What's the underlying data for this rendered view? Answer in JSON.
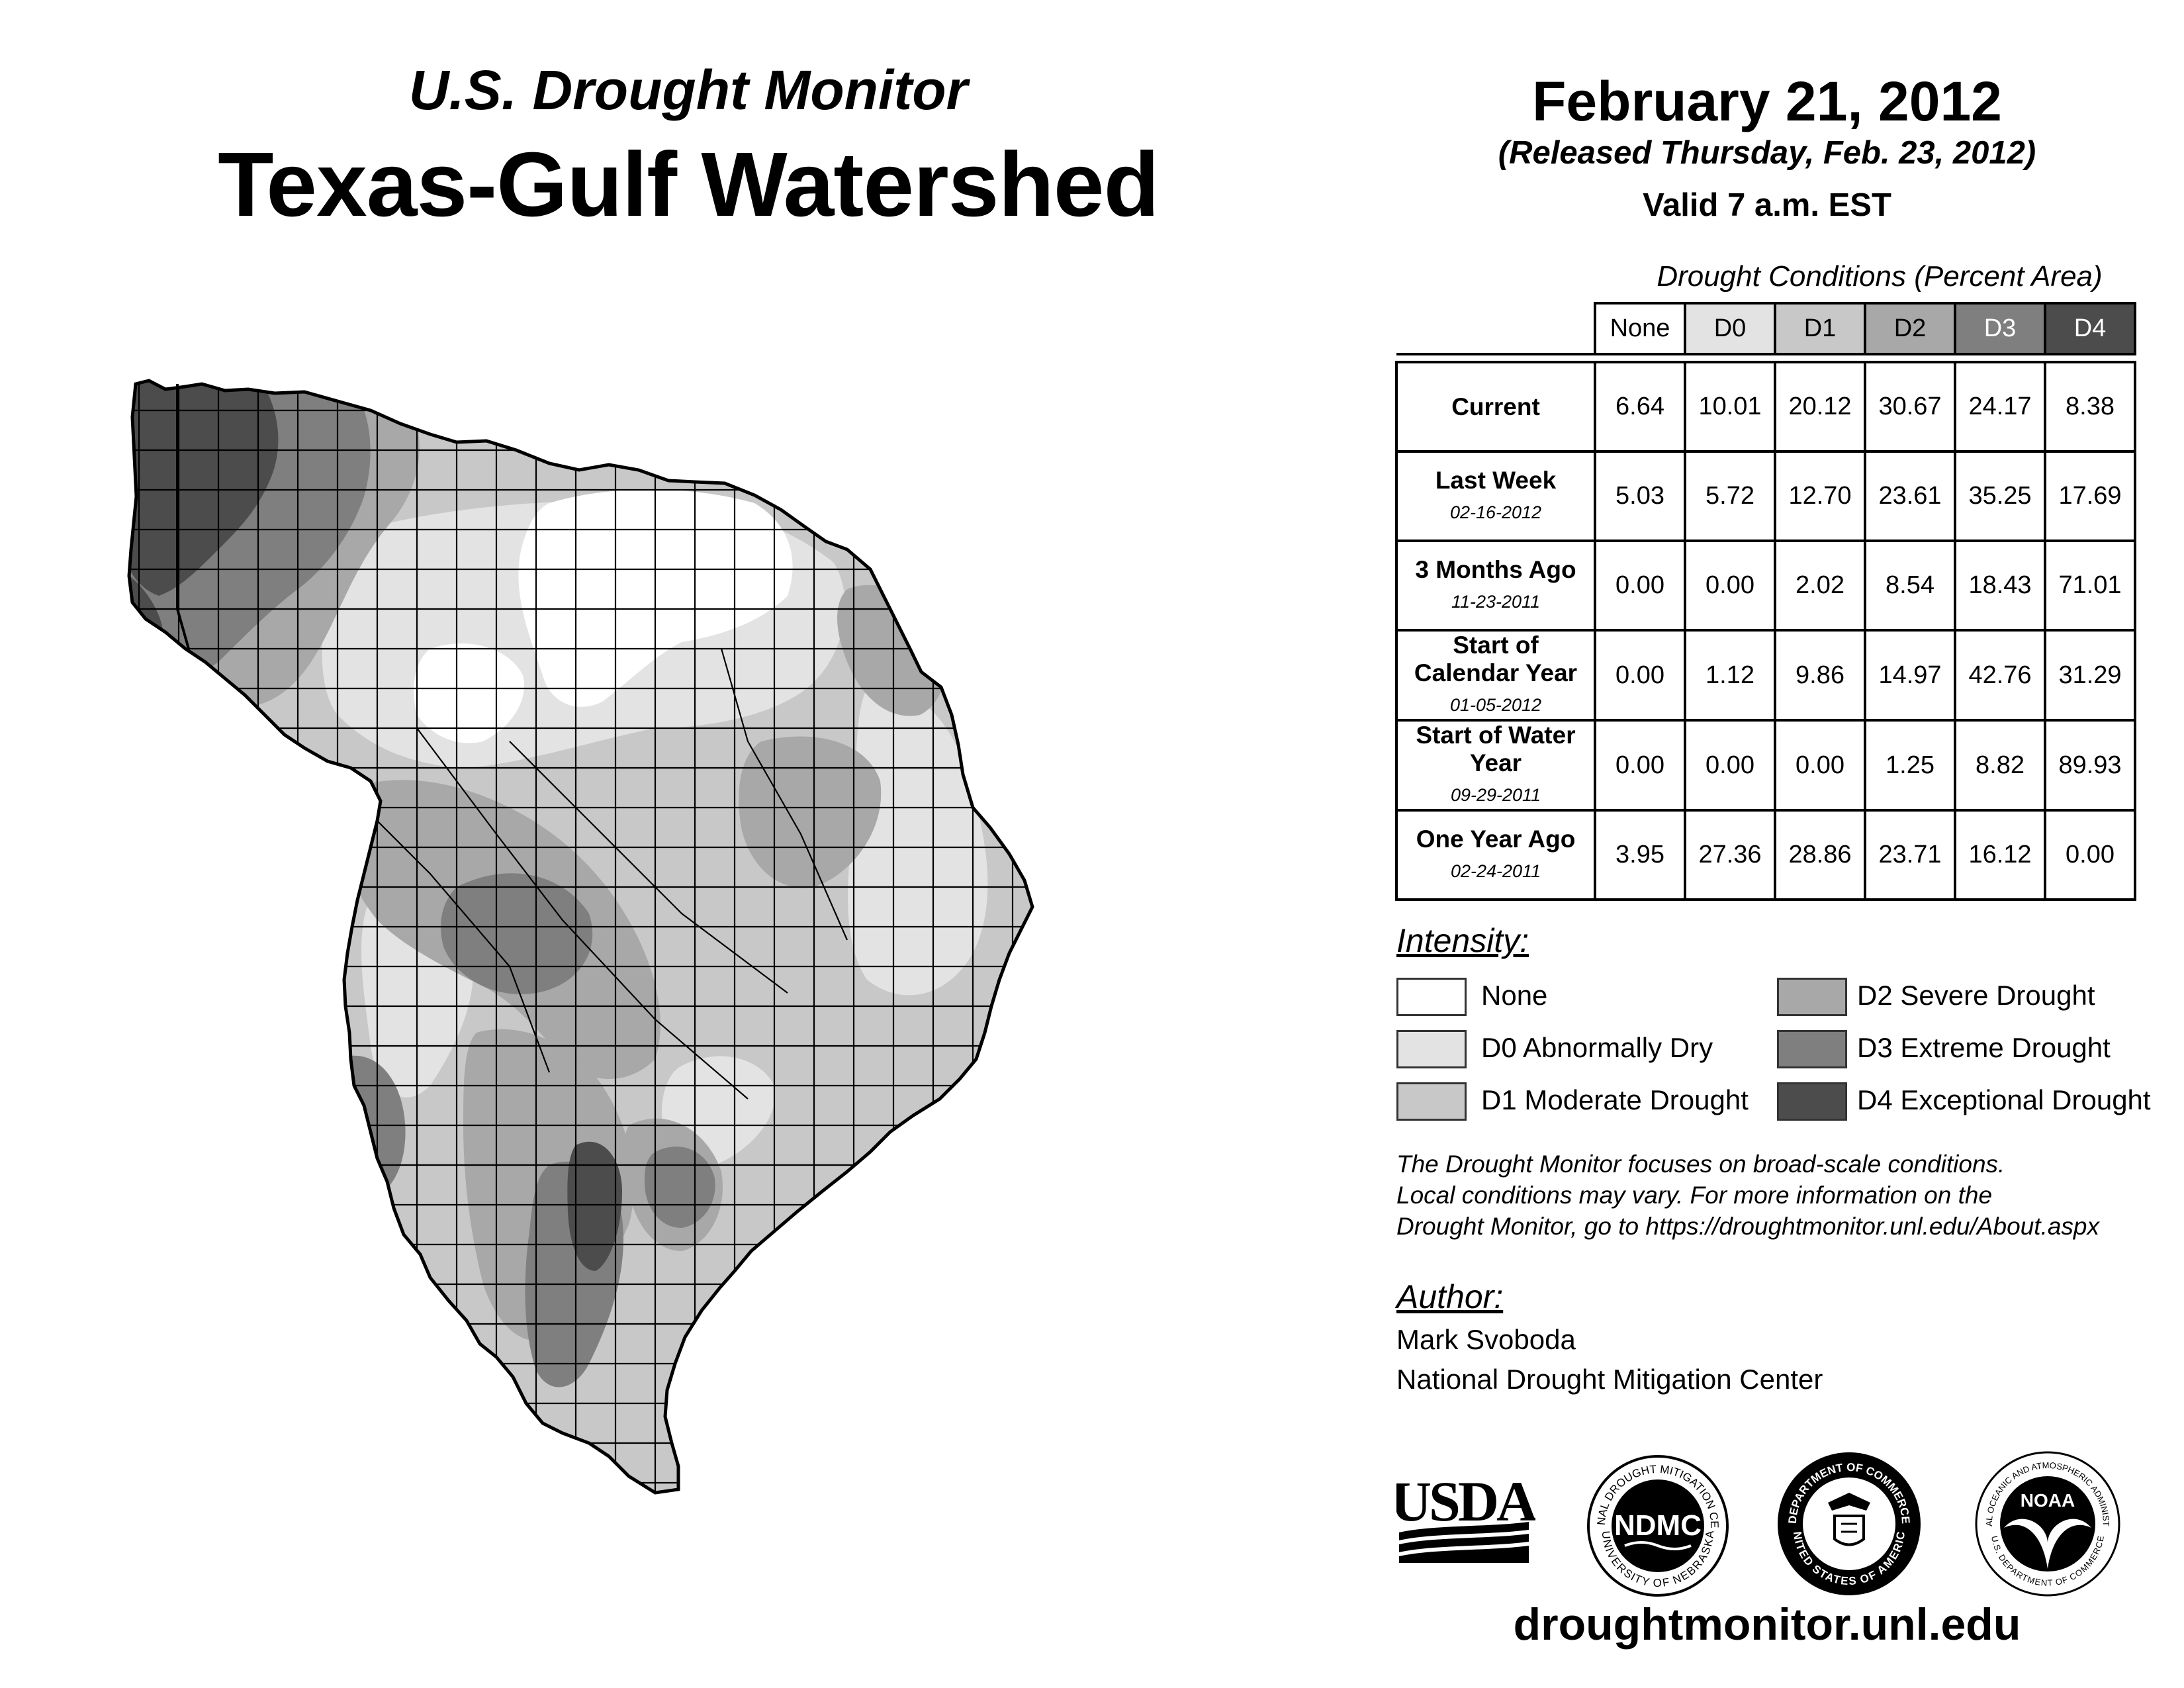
{
  "header": {
    "subtitle": "U.S. Drought Monitor",
    "title": "Texas-Gulf Watershed",
    "date": "February 21, 2012",
    "released": "(Released Thursday, Feb. 23, 2012)",
    "valid": "Valid 7 a.m. EST"
  },
  "table": {
    "caption": "Drought Conditions (Percent Area)",
    "columns": [
      "None",
      "D0",
      "D1",
      "D2",
      "D3",
      "D4"
    ],
    "rows": [
      {
        "label": "Current",
        "date": "",
        "values": [
          "6.64",
          "10.01",
          "20.12",
          "30.67",
          "24.17",
          "8.38"
        ]
      },
      {
        "label": "Last Week",
        "date": "02-16-2012",
        "values": [
          "5.03",
          "5.72",
          "12.70",
          "23.61",
          "35.25",
          "17.69"
        ]
      },
      {
        "label": "3 Months Ago",
        "date": "11-23-2011",
        "values": [
          "0.00",
          "0.00",
          "2.02",
          "8.54",
          "18.43",
          "71.01"
        ]
      },
      {
        "label": "Start of Calendar Year",
        "date": "01-05-2012",
        "values": [
          "0.00",
          "1.12",
          "9.86",
          "14.97",
          "42.76",
          "31.29"
        ]
      },
      {
        "label": "Start of Water Year",
        "date": "09-29-2011",
        "values": [
          "0.00",
          "0.00",
          "0.00",
          "1.25",
          "8.82",
          "89.93"
        ]
      },
      {
        "label": "One Year Ago",
        "date": "02-24-2011",
        "values": [
          "3.95",
          "27.36",
          "28.86",
          "23.71",
          "16.12",
          "0.00"
        ]
      }
    ]
  },
  "legend": {
    "title": "Intensity:",
    "items": [
      {
        "label": "None",
        "color": "#ffffff"
      },
      {
        "label": "D0 Abnormally Dry",
        "color": "#e3e3e3"
      },
      {
        "label": "D1 Moderate Drought",
        "color": "#c8c8c8"
      },
      {
        "label": "D2 Severe Drought",
        "color": "#a8a8a8"
      },
      {
        "label": "D3 Extreme Drought",
        "color": "#7f7f7f"
      },
      {
        "label": "D4 Exceptional Drought",
        "color": "#4c4c4c"
      }
    ]
  },
  "header_colors": {
    "None": "#ffffff",
    "D0": "#e3e3e3",
    "D1": "#c8c8c8",
    "D2": "#a8a8a8",
    "D3": "#7f7f7f",
    "D4": "#4c4c4c"
  },
  "note": {
    "line1": "The Drought Monitor focuses on broad-scale conditions.",
    "line2": "Local conditions may vary. For more information on the",
    "line3": "Drought Monitor, go to https://droughtmonitor.unl.edu/About.aspx"
  },
  "author": {
    "heading": "Author:",
    "name": "Mark Svoboda",
    "org": "National Drought Mitigation Center"
  },
  "logos": {
    "usda": "USDA",
    "ndmc": "NDMC",
    "ndmc_ring_top": "NATIONAL DROUGHT MITIGATION CENTER",
    "ndmc_ring_bottom": "UNIVERSITY OF NEBRASKA",
    "commerce_ring_top": "DEPARTMENT OF COMMERCE",
    "commerce_ring_bottom": "UNITED STATES OF AMERICA",
    "noaa": "NOAA",
    "noaa_ring_top": "NATIONAL OCEANIC AND ATMOSPHERIC ADMINISTRATION",
    "noaa_ring_bottom": "U.S. DEPARTMENT OF COMMERCE"
  },
  "footer_url": "droughtmonitor.unl.edu",
  "map_colors": {
    "none": "#ffffff",
    "d0": "#e3e3e3",
    "d1": "#c8c8c8",
    "d2": "#a8a8a8",
    "d3": "#7f7f7f",
    "d4": "#4c4c4c"
  }
}
